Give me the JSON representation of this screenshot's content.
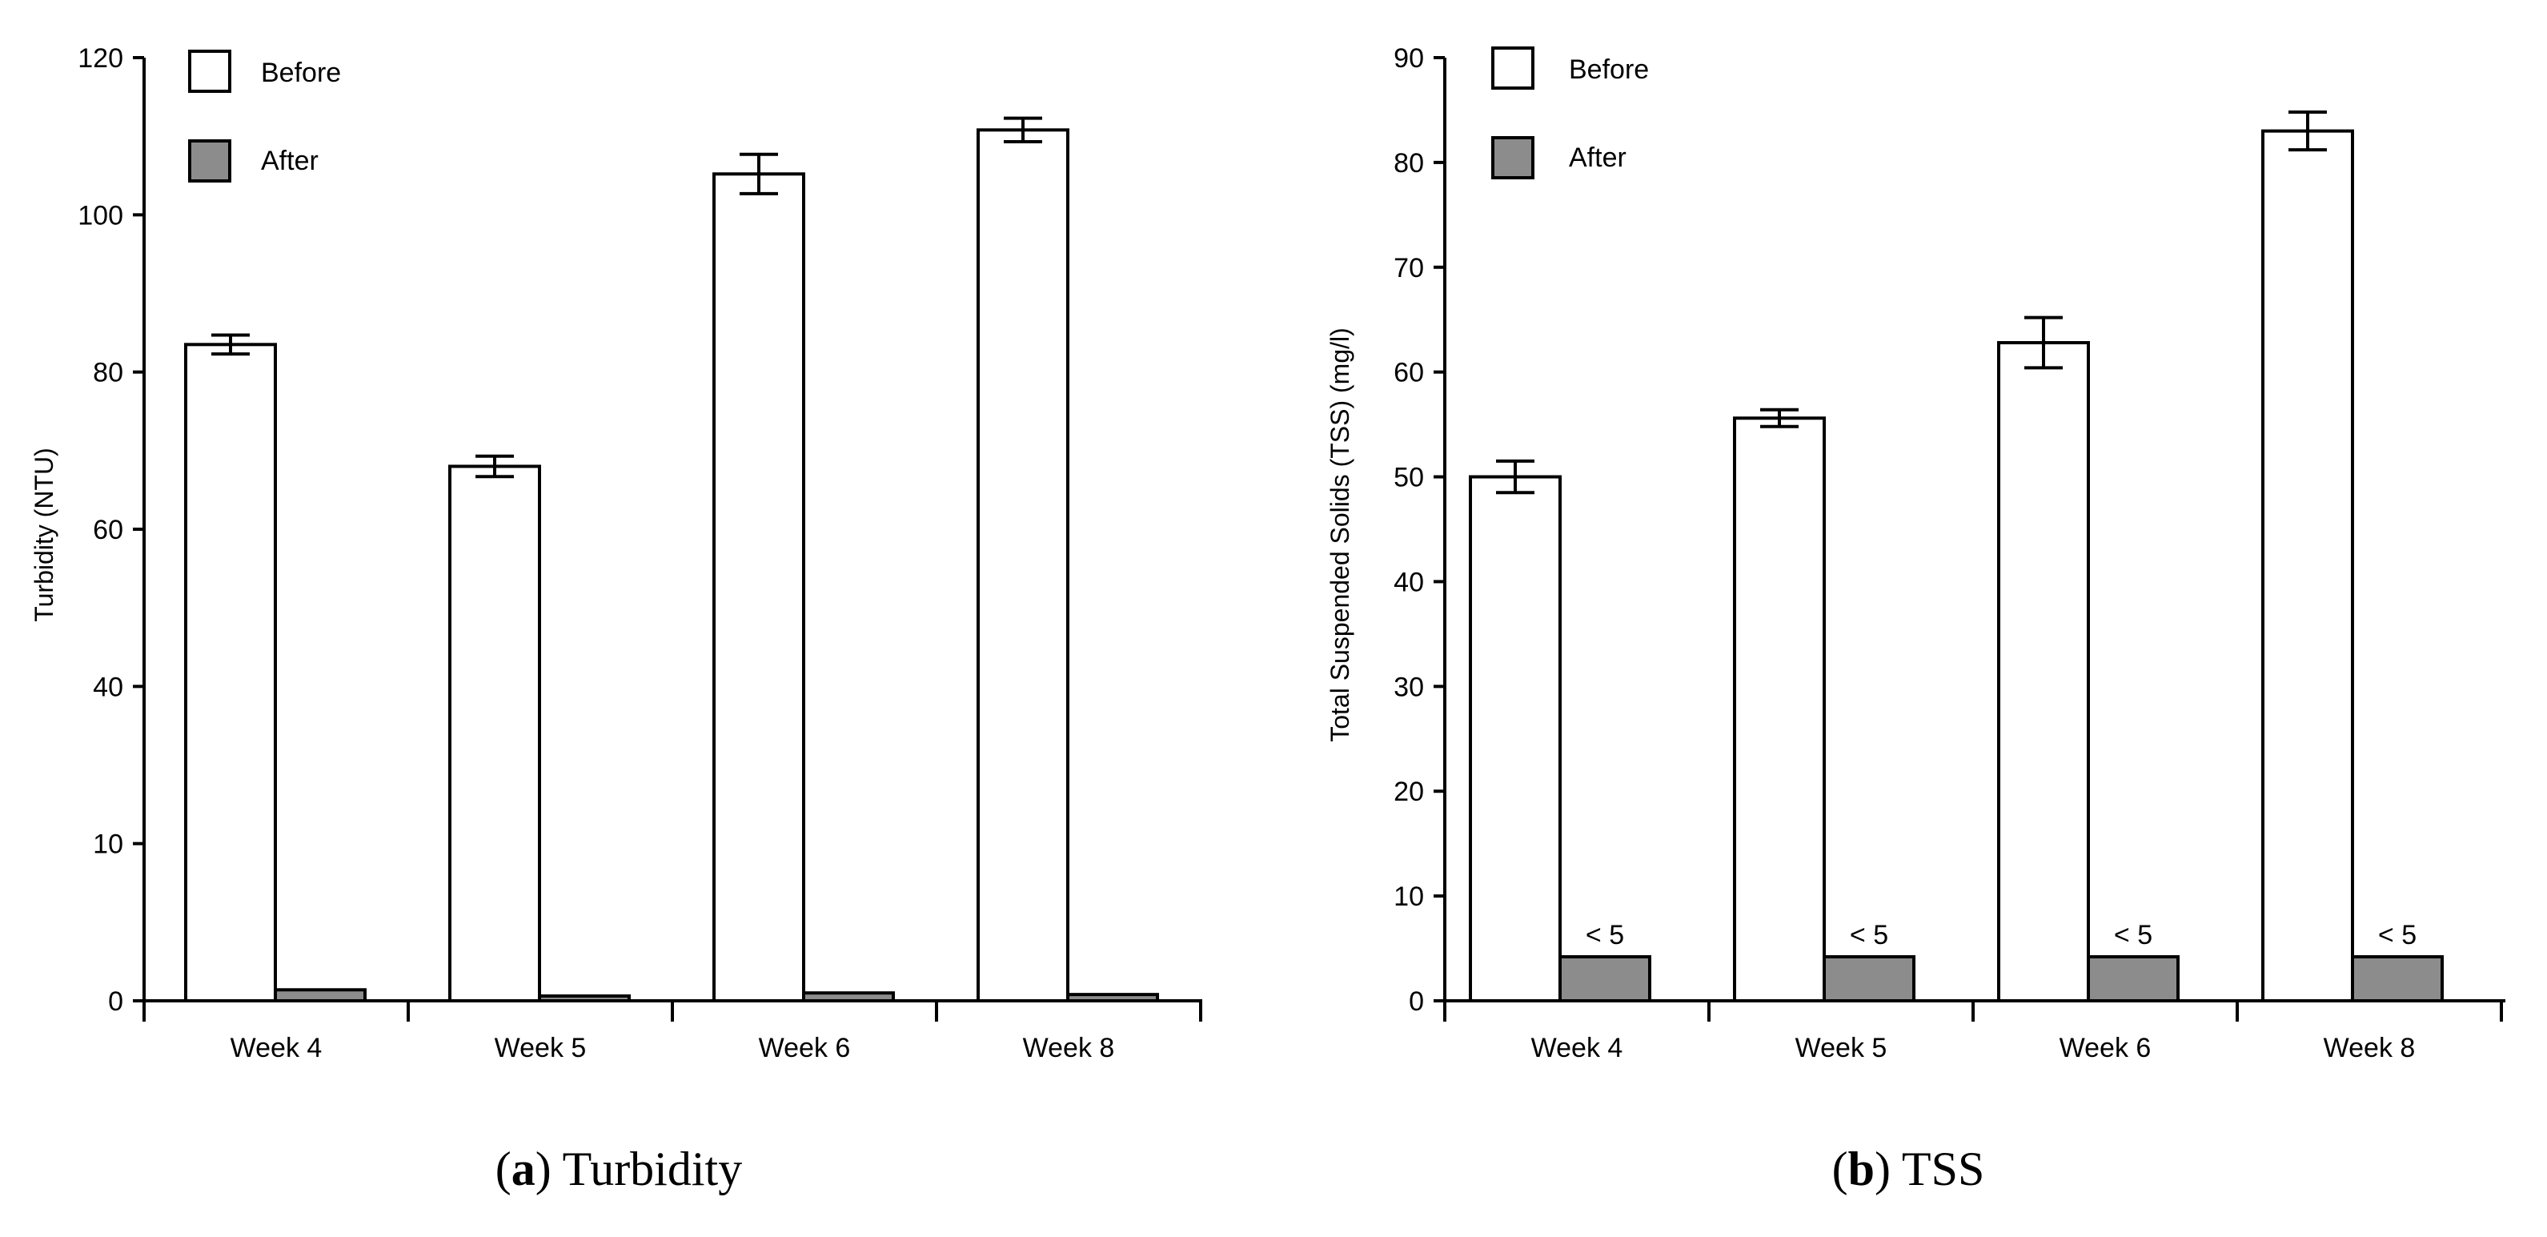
{
  "colors": {
    "before_fill": "#ffffff",
    "after_fill": "#8c8c8c",
    "stroke": "#000000"
  },
  "chart_data": [
    {
      "type": "bar",
      "panel": "a",
      "title": "Turbidity",
      "caption": {
        "prefix": "(",
        "letter": "a",
        "suffix": ") Turbidity"
      },
      "categories": [
        "Week 4",
        "Week 5",
        "Week 6",
        "Week 8"
      ],
      "xlabel": "",
      "ylabel": "Turbidity (NTU)",
      "ylim": [
        0,
        120
      ],
      "yticks": [
        "0",
        "10",
        "40",
        "60",
        "80",
        "100",
        "120"
      ],
      "axis_note": "broken y-axis: tick spacing is uniform although labels jump from 10 to 40",
      "legend": {
        "position": "top-left",
        "entries": [
          "Before",
          "After"
        ]
      },
      "series": [
        {
          "name": "Before",
          "values": [
            83.5,
            68,
            105.2,
            110.8
          ],
          "errors": [
            1.2,
            1.3,
            2.5,
            1.5
          ]
        },
        {
          "name": "After",
          "values": [
            0.7,
            0.3,
            0.5,
            0.4
          ],
          "errors": [
            0,
            0,
            0,
            0
          ]
        }
      ],
      "annotations": []
    },
    {
      "type": "bar",
      "panel": "b",
      "title": "TSS",
      "caption": {
        "prefix": "(",
        "letter": "b",
        "suffix": ") TSS"
      },
      "categories": [
        "Week 4",
        "Week 5",
        "Week 6",
        "Week 8"
      ],
      "xlabel": "",
      "ylabel": "Total Suspended Solids (TSS) (mg/l)",
      "ylim": [
        0,
        90
      ],
      "yticks": [
        "0",
        "10",
        "20",
        "30",
        "40",
        "50",
        "60",
        "70",
        "80",
        "90"
      ],
      "legend": {
        "position": "top-left",
        "entries": [
          "Before",
          "After"
        ]
      },
      "series": [
        {
          "name": "Before",
          "values": [
            50,
            55.6,
            62.8,
            83
          ],
          "errors": [
            1.5,
            0.8,
            2.4,
            1.8
          ]
        },
        {
          "name": "After",
          "values": [
            4.2,
            4.2,
            4.2,
            4.2
          ],
          "errors": [
            0,
            0,
            0,
            0
          ]
        }
      ],
      "annotations": [
        "< 5",
        "< 5",
        "< 5",
        "< 5"
      ]
    }
  ]
}
